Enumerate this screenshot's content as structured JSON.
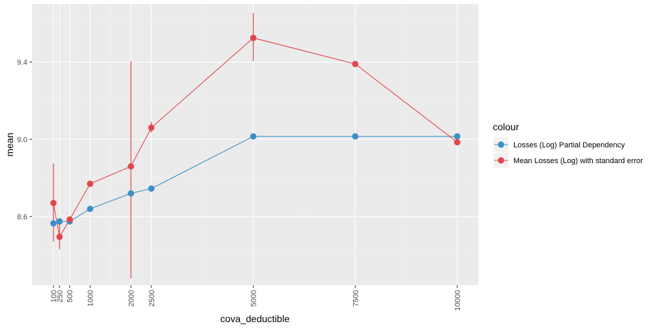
{
  "chart_data": {
    "type": "line",
    "xlabel": "cova_deductible",
    "ylabel": "mean",
    "x_ticks": [
      100,
      250,
      500,
      1000,
      2000,
      2500,
      5000,
      7500,
      10000
    ],
    "x_tick_labels": [
      "100",
      "250",
      "500",
      "1000",
      "2000",
      "2500",
      "5000",
      "7500",
      "10000"
    ],
    "y_ticks": [
      8.6,
      9.0,
      9.4
    ],
    "y_tick_labels": [
      "8.6",
      "9.0",
      "9.4"
    ],
    "xlim": [
      -420,
      10520
    ],
    "ylim": [
      8.245,
      9.7
    ],
    "grid": true,
    "legend": {
      "title": "colour",
      "position": "right"
    },
    "series": [
      {
        "name": "Losses (Log) Partial Dependency",
        "color": "#3a8fc6",
        "x": [
          100,
          250,
          500,
          1000,
          2000,
          2500,
          5000,
          7500,
          10000
        ],
        "y": [
          8.565,
          8.575,
          8.575,
          8.64,
          8.72,
          8.745,
          9.015,
          9.015,
          9.015
        ]
      },
      {
        "name": "Mean Losses (Log) with standard error",
        "color": "#e0474c",
        "x": [
          100,
          250,
          500,
          1000,
          2000,
          2500,
          5000,
          7500,
          10000
        ],
        "y": [
          8.67,
          8.495,
          8.585,
          8.77,
          8.86,
          9.06,
          9.525,
          9.39,
          8.985
        ],
        "error_low": [
          8.47,
          8.43,
          8.575,
          8.765,
          8.28,
          9.035,
          9.405,
          9.385,
          8.98
        ],
        "error_high": [
          8.875,
          8.565,
          8.595,
          8.775,
          9.405,
          9.09,
          9.655,
          9.395,
          8.99
        ]
      }
    ]
  }
}
